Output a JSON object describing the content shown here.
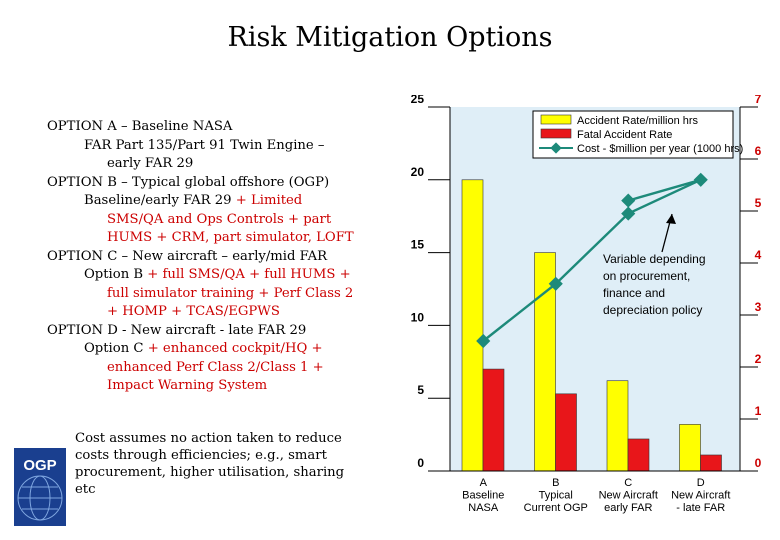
{
  "title": "Risk Mitigation Options",
  "options_lines": [
    {
      "indent": 0,
      "parts": [
        {
          "text": "OPTION A – Baseline NASA",
          "red": false
        }
      ]
    },
    {
      "indent": 1,
      "parts": [
        {
          "text": "FAR Part 135/Part 91 Twin Engine –",
          "red": false
        }
      ]
    },
    {
      "indent": 2,
      "parts": [
        {
          "text": "early FAR 29",
          "red": false
        }
      ]
    },
    {
      "indent": 0,
      "parts": [
        {
          "text": "OPTION B – Typical global offshore (OGP)",
          "red": false
        }
      ]
    },
    {
      "indent": 1,
      "parts": [
        {
          "text": "Baseline/early FAR 29 ",
          "red": false
        },
        {
          "text": "+ Limited",
          "red": true
        }
      ]
    },
    {
      "indent": 2,
      "parts": [
        {
          "text": "SMS/QA and Ops Controls + part",
          "red": true
        }
      ]
    },
    {
      "indent": 2,
      "parts": [
        {
          "text": "HUMS + CRM, part simulator, LOFT",
          "red": true
        }
      ]
    },
    {
      "indent": 0,
      "parts": [
        {
          "text": "OPTION C – New aircraft – early/mid FAR",
          "red": false
        }
      ]
    },
    {
      "indent": 1,
      "parts": [
        {
          "text": "Option B ",
          "red": false
        },
        {
          "text": "+ full SMS/QA + full HUMS +",
          "red": true
        }
      ]
    },
    {
      "indent": 2,
      "parts": [
        {
          "text": "full simulator training + Perf Class 2",
          "red": true
        }
      ]
    },
    {
      "indent": 2,
      "parts": [
        {
          "text": "+ HOMP + TCAS/EGPWS",
          "red": true
        }
      ]
    },
    {
      "indent": 0,
      "parts": [
        {
          "text": "OPTION D - New aircraft - late FAR 29",
          "red": false
        }
      ]
    },
    {
      "indent": 1,
      "parts": [
        {
          "text": "Option C ",
          "red": false
        },
        {
          "text": "+ enhanced cockpit/HQ +",
          "red": true
        }
      ]
    },
    {
      "indent": 2,
      "parts": [
        {
          "text": "enhanced Perf Class 2/Class 1 +",
          "red": true
        }
      ]
    },
    {
      "indent": 2,
      "parts": [
        {
          "text": "Impact Warning System",
          "red": true
        }
      ]
    }
  ],
  "note_lines": [
    "Cost assumes no action taken to reduce",
    "costs through efficiencies; e.g., smart",
    "procurement, higher utilisation, sharing",
    "etc"
  ],
  "logo_text": "OGP",
  "annotation_lines": [
    "Variable depending",
    "on procurement,",
    "finance and",
    "depreciation policy"
  ],
  "chart_data": {
    "type": "bar",
    "categories": [
      [
        "A",
        "Baseline",
        "NASA"
      ],
      [
        "B",
        "Typical",
        "Current OGP"
      ],
      [
        "C",
        "New Aircraft",
        "early FAR"
      ],
      [
        "D",
        "New Aircraft",
        "- late FAR"
      ]
    ],
    "series": [
      {
        "name": "Accident Rate/million hrs",
        "type": "bar",
        "axis": "left",
        "color": "#ffff00",
        "values": [
          20,
          15,
          6.2,
          3.2
        ]
      },
      {
        "name": "Fatal Accident Rate",
        "type": "bar",
        "axis": "left",
        "color": "#e8161a",
        "values": [
          7,
          5.3,
          2.2,
          1.1
        ]
      },
      {
        "name": "Cost - $million per year (1000 hrs)",
        "type": "line",
        "axis": "right",
        "color": "#1d8a7a",
        "values": [
          2.5,
          3.6,
          4.95,
          5.6
        ],
        "extra_point": 5.2
      }
    ],
    "y_left": {
      "min": 0,
      "max": 25,
      "ticks": [
        0,
        5,
        10,
        15,
        20,
        25
      ]
    },
    "y_right": {
      "min": 0,
      "max": 7,
      "ticks": [
        0,
        1,
        2,
        3,
        4,
        5,
        6,
        7
      ]
    },
    "plot_background": "#dfeef7",
    "legend_position": "top-right"
  }
}
